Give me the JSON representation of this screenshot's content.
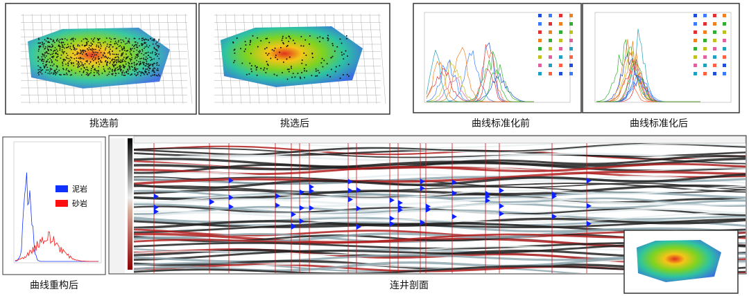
{
  "captions": {
    "before_selection": "挑选前",
    "after_selection": "挑选后",
    "before_normalization": "曲线标准化前",
    "after_normalization": "曲线标准化后",
    "after_reconstruction": "曲线重构后",
    "well_section": "连井剖面"
  },
  "legend": {
    "mudstone": "泥岩",
    "sandstone": "砂岩"
  }
}
